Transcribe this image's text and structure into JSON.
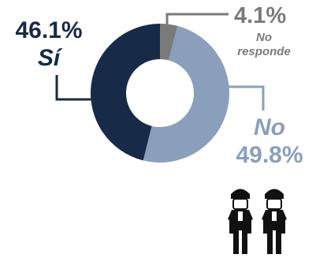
{
  "chart_data": {
    "type": "pie",
    "variant": "donut",
    "title": "",
    "slices": [
      {
        "label": "No responde",
        "label_lines": [
          "No",
          "responde"
        ],
        "value": 4.1,
        "value_label": "4.1%",
        "color": "#7a7a7a",
        "label_color": "#7a7a7a"
      },
      {
        "label": "No",
        "label_lines": [
          "No"
        ],
        "value": 49.8,
        "value_label": "49.8%",
        "color": "#8a9fbb",
        "label_color": "#8a9fbb"
      },
      {
        "label": "Sí",
        "label_lines": [
          "Sí"
        ],
        "value": 46.1,
        "value_label": "46.1%",
        "color": "#172b48",
        "label_color": "#172b48"
      }
    ],
    "start_angle_deg": 0,
    "direction": "clockwise"
  },
  "decoration": {
    "icon": "two-people-with-masks-icon",
    "icon_color": "#111111"
  }
}
